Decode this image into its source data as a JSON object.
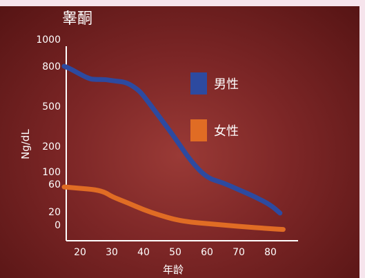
{
  "chart_data": {
    "type": "line",
    "title": "睾酮",
    "xlabel": "年龄",
    "ylabel": "Ng/dL",
    "x_ticks": [
      20,
      30,
      40,
      50,
      60,
      70,
      80
    ],
    "y_ticks": [
      {
        "value": 1000,
        "label": "1000"
      },
      {
        "value": 800,
        "label": "800"
      },
      {
        "value": 500,
        "label": "500"
      },
      {
        "value": 200,
        "label": "200"
      },
      {
        "value": 100,
        "label": "100"
      },
      {
        "value": 60,
        "label": "60"
      },
      {
        "value": 20,
        "label": "20"
      },
      {
        "value": 0,
        "label": "0"
      }
    ],
    "legend_position": "right",
    "series": [
      {
        "name": "男性",
        "color": "#2d4aa0",
        "points": [
          [
            15,
            800
          ],
          [
            17,
            780
          ],
          [
            20,
            740
          ],
          [
            23,
            705
          ],
          [
            25,
            700
          ],
          [
            28,
            700
          ],
          [
            30,
            692
          ],
          [
            33,
            685
          ],
          [
            35,
            673
          ],
          [
            38,
            630
          ],
          [
            40,
            580
          ],
          [
            45,
            420
          ],
          [
            50,
            260
          ],
          [
            55,
            140
          ],
          [
            60,
            80
          ],
          [
            65,
            65
          ],
          [
            70,
            52
          ],
          [
            75,
            42
          ],
          [
            80,
            30
          ],
          [
            83,
            18
          ]
        ]
      },
      {
        "name": "女性",
        "color": "#e06c24",
        "points": [
          [
            15,
            56
          ],
          [
            20,
            54
          ],
          [
            25,
            52
          ],
          [
            28,
            48
          ],
          [
            30,
            42
          ],
          [
            35,
            33
          ],
          [
            40,
            23
          ],
          [
            45,
            15
          ],
          [
            50,
            8
          ],
          [
            55,
            4
          ],
          [
            60,
            2
          ],
          [
            70,
            -2
          ],
          [
            80,
            -5
          ],
          [
            84,
            -6
          ]
        ]
      }
    ]
  }
}
